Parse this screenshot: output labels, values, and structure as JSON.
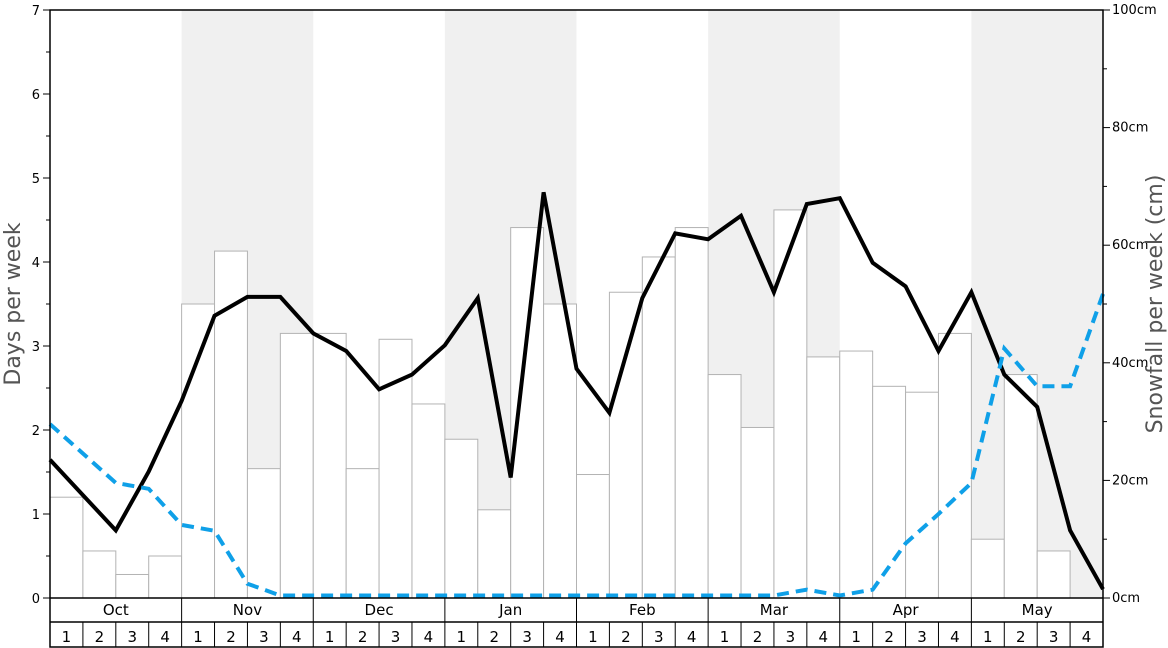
{
  "chart_data": {
    "type": "bar",
    "ylabel_left": "Days per week",
    "ylabel_right": "Snowfall per week (cm)",
    "ylim_left": [
      0,
      7
    ],
    "ylim_right": [
      0,
      100
    ],
    "left_ticks": [
      "0",
      "1",
      "2",
      "3",
      "4",
      "5",
      "6",
      "7"
    ],
    "right_ticks": [
      "0cm",
      "20cm",
      "40cm",
      "60cm",
      "80cm",
      "100cm"
    ],
    "months": [
      "Oct",
      "Nov",
      "Dec",
      "Jan",
      "Feb",
      "Mar",
      "Apr",
      "May"
    ],
    "week_labels": [
      "1",
      "2",
      "3",
      "4"
    ],
    "colors": {
      "bar_fill": "#ffffff",
      "bar_stroke": "#b3b3b3",
      "band": "#f0f0f0",
      "days_line": "#000000",
      "snow_line": "#0fa0e8"
    },
    "series": [
      {
        "kind": "bar",
        "axis": "left",
        "values": [
          1.2,
          0.56,
          0.28,
          0.5,
          3.5,
          4.13,
          1.54,
          3.15,
          3.15,
          1.54,
          3.08,
          2.31,
          1.89,
          1.05,
          4.41,
          3.5,
          1.47,
          3.64,
          4.06,
          4.41,
          2.66,
          2.03,
          4.62,
          2.87,
          2.94,
          2.52,
          2.45,
          3.15,
          0.7,
          2.66,
          0.56,
          0.0
        ]
      },
      {
        "kind": "line",
        "style": "solid",
        "axis": "right",
        "values": [
          23.5,
          17.5,
          11.5,
          21.5,
          33.5,
          48.0,
          51.2,
          51.2,
          45.0,
          42.0,
          35.5,
          38.0,
          43.0,
          51.0,
          20.5,
          69.0,
          39.0,
          31.5,
          51.0,
          62.0,
          61.0,
          65.0,
          52.0,
          67.0,
          68.0,
          57.0,
          53.0,
          42.0,
          52.0,
          38.0,
          32.5,
          11.5,
          1.5
        ]
      },
      {
        "kind": "line",
        "style": "dashed",
        "axis": "left",
        "values": [
          2.07,
          1.72,
          1.37,
          1.3,
          0.87,
          0.8,
          0.17,
          0.03,
          0.03,
          0.03,
          0.03,
          0.03,
          0.03,
          0.03,
          0.03,
          0.03,
          0.03,
          0.03,
          0.03,
          0.03,
          0.03,
          0.03,
          0.03,
          0.1,
          0.03,
          0.1,
          0.65,
          1.0,
          1.37,
          2.97,
          2.52,
          2.52,
          3.62
        ]
      }
    ]
  }
}
